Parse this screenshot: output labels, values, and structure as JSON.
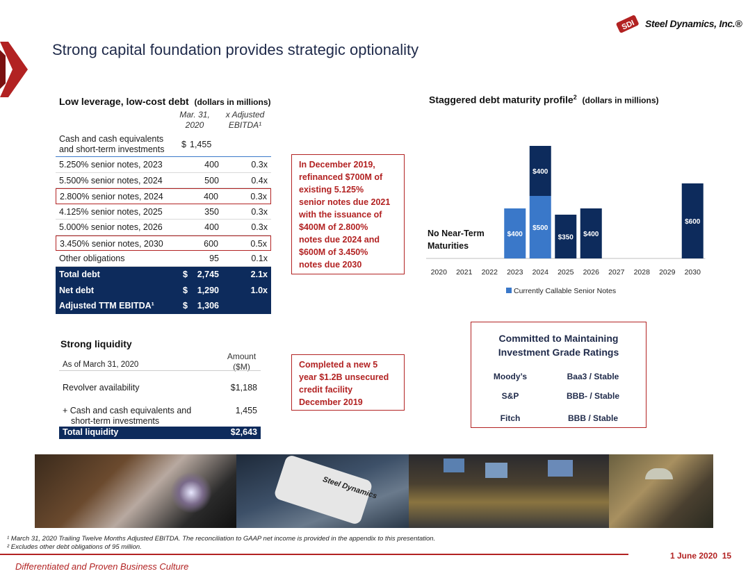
{
  "header": {
    "title": "Strong capital foundation provides strategic optionality",
    "logo_mark": "SDI",
    "logo_text": "Steel Dynamics, Inc.®"
  },
  "debt_table": {
    "title": "Low leverage, low-cost debt",
    "title_units": "(dollars in millions)",
    "col_date_1": "Mar. 31,",
    "col_date_2": "2020",
    "col_mult_1": "x Adjusted",
    "col_mult_2": "EBITDA¹",
    "cash_label_1": "Cash and cash equivalents",
    "cash_label_2": "and short-term investments",
    "cash_dollar": "$",
    "cash_value": "1,455",
    "rows": [
      {
        "label": "5.250% senior notes, 2023",
        "amount": "400",
        "multiple": "0.3x"
      },
      {
        "label": "5.500% senior notes, 2024",
        "amount": "500",
        "multiple": "0.4x"
      },
      {
        "label": "2.800% senior notes, 2024",
        "amount": "400",
        "multiple": "0.3x"
      },
      {
        "label": "4.125% senior notes, 2025",
        "amount": "350",
        "multiple": "0.3x"
      },
      {
        "label": "5.000% senior notes, 2026",
        "amount": "400",
        "multiple": "0.3x"
      },
      {
        "label": "3.450% senior notes, 2030",
        "amount": "600",
        "multiple": "0.5x"
      },
      {
        "label": "Other obligations",
        "amount": "95",
        "multiple": "0.1x"
      }
    ],
    "totals": [
      {
        "label": "Total debt",
        "dollar": "$",
        "amount": "2,745",
        "multiple": "2.1x"
      },
      {
        "label": "Net debt",
        "dollar": "$",
        "amount": "1,290",
        "multiple": "1.0x"
      },
      {
        "label": "Adjusted TTM EBITDA¹",
        "dollar": "$",
        "amount": "1,306",
        "multiple": ""
      }
    ]
  },
  "callouts": {
    "refinance": [
      "In December 2019,",
      "refinanced $700M of",
      "existing 5.125%",
      "senior notes due 2021",
      "with the issuance of",
      "$400M of 2.800%",
      "notes due 2024 and",
      "$600M of 3.450%",
      "notes due 2030"
    ],
    "credit": [
      "Completed a new 5",
      "year $1.2B unsecured",
      "credit facility",
      "December 2019"
    ]
  },
  "liquidity": {
    "title": "Strong liquidity",
    "as_of": "As of March 31, 2020",
    "amount_head_1": "Amount",
    "amount_head_2": "($M)",
    "revolver_label": "Revolver availability",
    "revolver_value": "$1,188",
    "cash_label_1": "+ Cash and cash equivalents and",
    "cash_label_2": "short-term investments",
    "cash_value": "1,455",
    "total_label": "Total liquidity",
    "total_value": "$2,643"
  },
  "maturity": {
    "title": "Staggered debt maturity profile",
    "title_sup": "2",
    "title_units": "(dollars in millions)",
    "no_near_term_1": "No Near-Term",
    "no_near_term_2": "Maturities",
    "legend": "Currently Callable Senior Notes",
    "colors": {
      "callable": "#3a78c9",
      "noncallable": "#0d2b5c"
    }
  },
  "chart_data": {
    "type": "bar",
    "stacked": true,
    "categories": [
      "2020",
      "2021",
      "2022",
      "2023",
      "2024",
      "2025",
      "2026",
      "2027",
      "2028",
      "2029",
      "2030"
    ],
    "series": [
      {
        "name": "Currently Callable Senior Notes",
        "values": [
          0,
          0,
          0,
          400,
          500,
          0,
          0,
          0,
          0,
          0,
          0
        ],
        "labels": [
          "",
          "",
          "",
          "$400",
          "$500",
          "",
          "",
          "",
          "",
          "",
          ""
        ]
      },
      {
        "values": [
          0,
          0,
          0,
          0,
          400,
          350,
          400,
          0,
          0,
          0,
          600
        ],
        "labels": [
          "",
          "",
          "",
          "",
          "$400",
          "$350",
          "$400",
          "",
          "",
          "",
          "$600"
        ]
      }
    ],
    "ylim": [
      0,
      900
    ],
    "legend": "bottom"
  },
  "ratings": {
    "title_1": "Committed to Maintaining",
    "title_2": "Investment Grade Ratings",
    "rows": [
      {
        "agency": "Moody’s",
        "rating": "Baa3 / Stable"
      },
      {
        "agency": "S&P",
        "rating": "BBB- / Stable"
      },
      {
        "agency": "Fitch",
        "rating": "BBB / Stable"
      }
    ]
  },
  "photos": {
    "badge_text": "Steel Dynamics"
  },
  "footnotes": {
    "fn1": "¹ March 31, 2020 Trailing Twelve Months Adjusted EBITDA. The reconciliation to GAAP net income is provided in the appendix to this presentation.",
    "fn2": "² Excludes other debt obligations of 95 million."
  },
  "footer": {
    "tagline": "Differentiated and Proven Business Culture",
    "date": "1 June 2020",
    "page": "15"
  }
}
